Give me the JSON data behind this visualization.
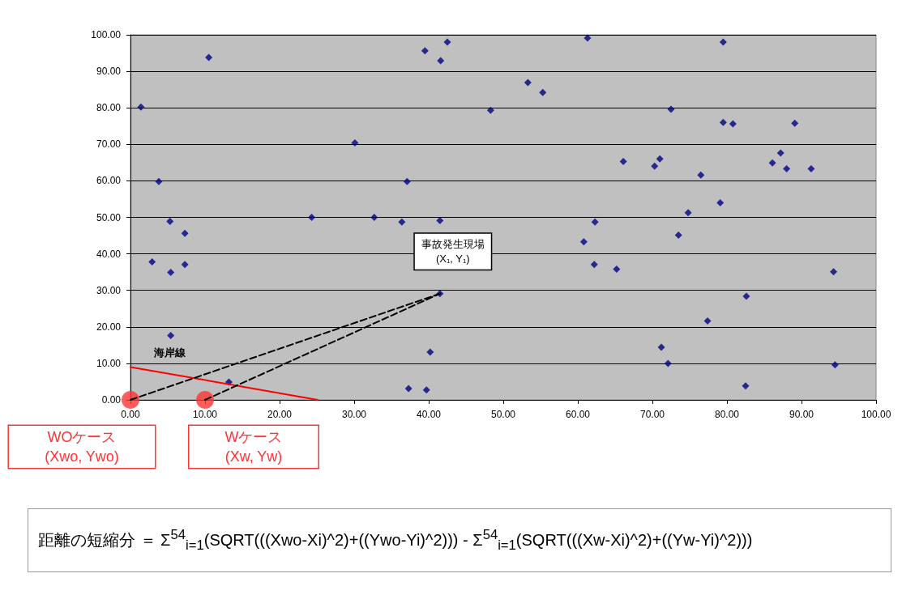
{
  "chart_data": {
    "type": "scatter",
    "xlim": [
      0,
      100
    ],
    "ylim": [
      0,
      100
    ],
    "xticks": [
      {
        "value": 0,
        "label": "0.00"
      },
      {
        "value": 10,
        "label": "10.00"
      },
      {
        "value": 20,
        "label": "20.00"
      },
      {
        "value": 30,
        "label": "30.00"
      },
      {
        "value": 40,
        "label": "40.00"
      },
      {
        "value": 50,
        "label": "50.00"
      },
      {
        "value": 60,
        "label": "60.00"
      },
      {
        "value": 70,
        "label": "70.00"
      },
      {
        "value": 80,
        "label": "80.00"
      },
      {
        "value": 90,
        "label": "90.00"
      },
      {
        "value": 100,
        "label": "100.00"
      }
    ],
    "yticks": [
      {
        "value": 0,
        "label": "0.00"
      },
      {
        "value": 10,
        "label": "10.00"
      },
      {
        "value": 20,
        "label": "20.00"
      },
      {
        "value": 30,
        "label": "30.00"
      },
      {
        "value": 40,
        "label": "40.00"
      },
      {
        "value": 50,
        "label": "50.00"
      },
      {
        "value": 60,
        "label": "60.00"
      },
      {
        "value": 70,
        "label": "70.00"
      },
      {
        "value": 80,
        "label": "80.00"
      },
      {
        "value": 90,
        "label": "90.00"
      },
      {
        "value": 100,
        "label": "100.00"
      }
    ],
    "grid": "y",
    "marker": "diamond",
    "series": [
      {
        "color": "#000080",
        "x": [
          1.4,
          10.5,
          3.8,
          2.9,
          5.3,
          5.4,
          7.3,
          7.3,
          5.4,
          13.2,
          24.3,
          30.1,
          32.7,
          36.4,
          37.1,
          37.3,
          39.5,
          39.7,
          40.2,
          41.6,
          42.5,
          41.5,
          41.5,
          48.3,
          53.3,
          55.3,
          61.3,
          60.8,
          62.3,
          62.2,
          65.2,
          66.1,
          70.3,
          71.0,
          72.5,
          76.5,
          79.5,
          79.5,
          80.8,
          89.1,
          87.2,
          86.1,
          88.0,
          91.3,
          79.1,
          74.8,
          73.5,
          94.3,
          82.6,
          77.4,
          71.2,
          72.1,
          94.5,
          82.5
        ],
        "values": [
          80.2,
          93.8,
          59.8,
          37.8,
          48.9,
          34.9,
          45.6,
          37.1,
          17.6,
          4.9,
          50.0,
          70.4,
          50.0,
          48.7,
          59.8,
          3.1,
          95.6,
          2.7,
          13.1,
          92.9,
          98.0,
          49.1,
          29.1,
          79.3,
          86.9,
          84.2,
          99.1,
          43.3,
          48.7,
          37.1,
          35.8,
          65.3,
          64.0,
          66.0,
          79.6,
          61.6,
          98.0,
          76.0,
          75.6,
          75.8,
          67.6,
          64.9,
          63.3,
          63.3,
          54.0,
          51.3,
          45.1,
          35.1,
          28.4,
          21.6,
          14.4,
          10.0,
          9.6,
          3.8
        ]
      },
      {
        "type": "line",
        "name": "海岸線",
        "color": "#ff0000",
        "marker": "none",
        "line_style": "solid",
        "x": [
          0,
          25.1
        ],
        "values": [
          9.0,
          0
        ]
      },
      {
        "type": "line",
        "color": "#000000",
        "marker": "none",
        "line_style": "dashed",
        "x": [
          0,
          41.5
        ],
        "values": [
          0,
          29.1
        ]
      },
      {
        "type": "line",
        "color": "#000000",
        "marker": "none",
        "line_style": "dashed",
        "x": [
          10,
          41.5
        ],
        "values": [
          0,
          29.1
        ]
      },
      {
        "type": "scatter",
        "color": "#ff3333",
        "marker": "circle",
        "x": [
          0,
          10
        ],
        "values": [
          0,
          0
        ]
      }
    ],
    "annotations": [
      {
        "text": "事故発生現場\n(X₁, Y₁)",
        "x": 41.5,
        "y": 29.1
      },
      {
        "text": "WOケース\n(Xwo, Ywo)",
        "x": 0,
        "y": 0
      },
      {
        "text": "Wケース\n(Xw, Yw)",
        "x": 10,
        "y": 0
      },
      "距離の短縮分 ＝ Σ$^{54}$$_{i=1}$(SQRT(((Xwo-Xi)^2)+((Ywo-Yi)^2))) - Σ$^{54}$$_{i=1}$(SQRT(((Xw-Xi)^2)+((Yw-Yi)^2)))"
    ]
  }
}
